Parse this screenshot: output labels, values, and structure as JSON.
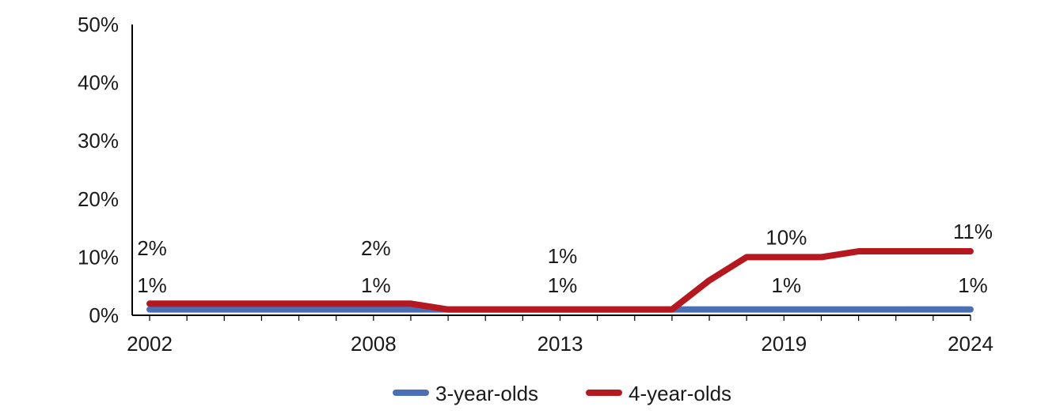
{
  "chart_data": {
    "type": "line",
    "x": [
      2002,
      2003,
      2004,
      2005,
      2006,
      2007,
      2008,
      2009,
      2010,
      2011,
      2012,
      2013,
      2014,
      2015,
      2016,
      2017,
      2018,
      2019,
      2020,
      2021,
      2022,
      2023,
      2024
    ],
    "x_tick_labels": [
      "2002",
      "2008",
      "2013",
      "2019",
      "2024"
    ],
    "y_tick_labels": [
      "0%",
      "10%",
      "20%",
      "30%",
      "40%",
      "50%"
    ],
    "ylim": [
      0,
      50
    ],
    "grid": false,
    "legend_position": "bottom",
    "series": [
      {
        "name": "3-year-olds",
        "color": "#4a6fb5",
        "values": [
          1,
          1,
          1,
          1,
          1,
          1,
          1,
          1,
          1,
          1,
          1,
          1,
          1,
          1,
          1,
          1,
          1,
          1,
          1,
          1,
          1,
          1,
          1
        ],
        "data_labels": [
          {
            "year": 2002,
            "text": "1%"
          },
          {
            "year": 2008,
            "text": "1%"
          },
          {
            "year": 2013,
            "text": "1%"
          },
          {
            "year": 2019,
            "text": "1%"
          },
          {
            "year": 2024,
            "text": "1%"
          }
        ]
      },
      {
        "name": "4-year-olds",
        "color": "#b5191f",
        "values": [
          2,
          2,
          2,
          2,
          2,
          2,
          2,
          2,
          1,
          1,
          1,
          1,
          1,
          1,
          1,
          6,
          10,
          10,
          10,
          11,
          11,
          11,
          11
        ],
        "data_labels": [
          {
            "year": 2002,
            "text": "2%"
          },
          {
            "year": 2008,
            "text": "2%"
          },
          {
            "year": 2013,
            "text": "1%"
          },
          {
            "year": 2019,
            "text": "10%"
          },
          {
            "year": 2024,
            "text": "11%"
          }
        ]
      }
    ]
  }
}
